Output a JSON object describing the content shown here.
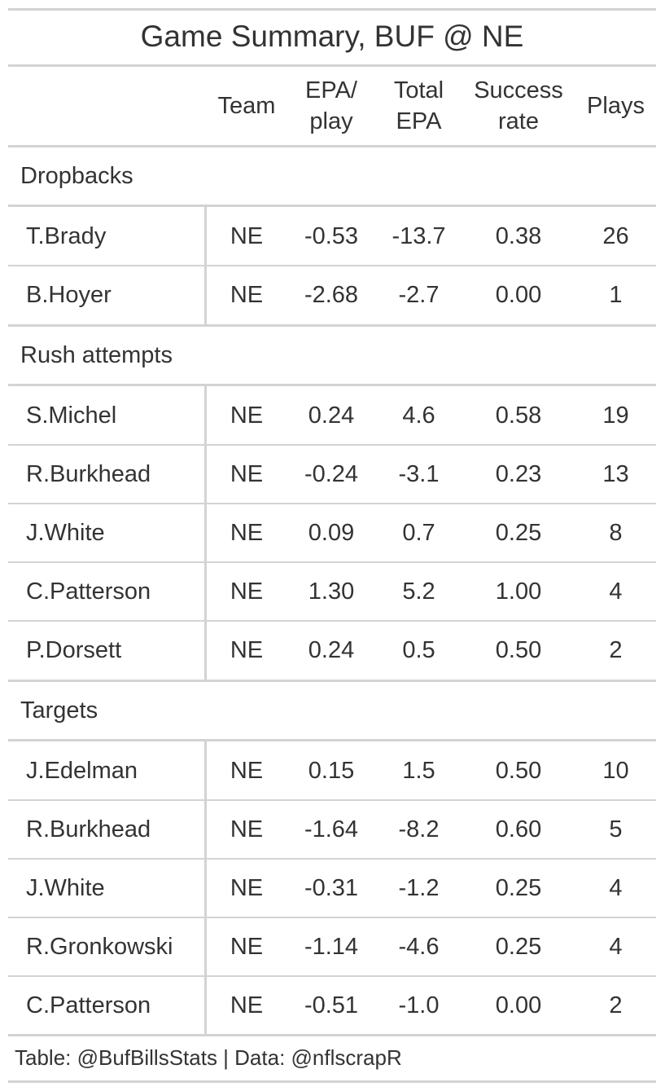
{
  "chart_data": {
    "type": "table",
    "title": "Game Summary, BUF @ NE",
    "columns": [
      "",
      "Team",
      "EPA/\nplay",
      "Total\nEPA",
      "Success\nrate",
      "Plays"
    ],
    "groups": [
      {
        "label": "Dropbacks",
        "rows": [
          [
            "T.Brady",
            "NE",
            "-0.53",
            "-13.7",
            "0.38",
            "26"
          ],
          [
            "B.Hoyer",
            "NE",
            "-2.68",
            "-2.7",
            "0.00",
            "1"
          ]
        ]
      },
      {
        "label": "Rush attempts",
        "rows": [
          [
            "S.Michel",
            "NE",
            "0.24",
            "4.6",
            "0.58",
            "19"
          ],
          [
            "R.Burkhead",
            "NE",
            "-0.24",
            "-3.1",
            "0.23",
            "13"
          ],
          [
            "J.White",
            "NE",
            "0.09",
            "0.7",
            "0.25",
            "8"
          ],
          [
            "C.Patterson",
            "NE",
            "1.30",
            "5.2",
            "1.00",
            "4"
          ],
          [
            "P.Dorsett",
            "NE",
            "0.24",
            "0.5",
            "0.50",
            "2"
          ]
        ]
      },
      {
        "label": "Targets",
        "rows": [
          [
            "J.Edelman",
            "NE",
            "0.15",
            "1.5",
            "0.50",
            "10"
          ],
          [
            "R.Burkhead",
            "NE",
            "-1.64",
            "-8.2",
            "0.60",
            "5"
          ],
          [
            "J.White",
            "NE",
            "-0.31",
            "-1.2",
            "0.25",
            "4"
          ],
          [
            "R.Gronkowski",
            "NE",
            "-1.14",
            "-4.6",
            "0.25",
            "4"
          ],
          [
            "C.Patterson",
            "NE",
            "-0.51",
            "-1.0",
            "0.00",
            "2"
          ]
        ]
      }
    ],
    "source_note": "Table: @BufBillsStats | Data: @nflscrapR"
  },
  "colors": {
    "rule": "#d3d3d3",
    "text": "#333333"
  }
}
